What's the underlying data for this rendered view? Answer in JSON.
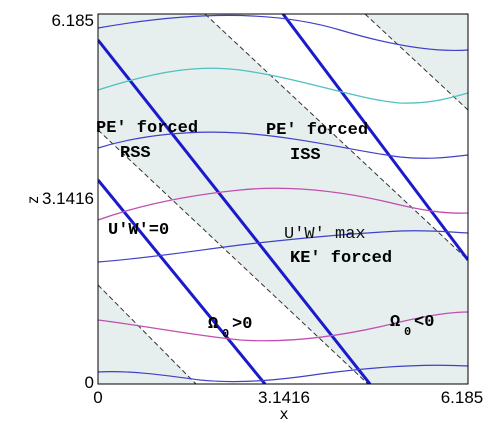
{
  "axes": {
    "xlabel": "x",
    "ylabel": "z",
    "x_ticks": [
      "0",
      "3.1416",
      "6.185"
    ],
    "y_ticks": [
      "0",
      "3.1416",
      "6.185"
    ],
    "xlim": [
      0,
      6.185
    ],
    "ylim": [
      0,
      6.185
    ]
  },
  "labels": {
    "pe_forced_rss_1": "PE' forced",
    "pe_forced_rss_2": "RSS",
    "pe_forced_iss_1": "PE' forced",
    "pe_forced_iss_2": "ISS",
    "uw_zero": "U'W'=0",
    "uw_max": "U'W' max",
    "ke_forced": "KE' forced",
    "omega_pos_symbol": "Ω",
    "omega_pos_sub": "0",
    "omega_pos_rel": ">0",
    "omega_neg_symbol": "Ω",
    "omega_neg_sub": "0",
    "omega_neg_rel": "<0"
  },
  "colors": {
    "shading": "#e6eeee",
    "phase_line": "#1a1acc",
    "dashed": "#333333",
    "blue_wave": "#4040c8",
    "cyan_wave": "#50c0c0",
    "magenta_wave": "#c050b0"
  }
}
